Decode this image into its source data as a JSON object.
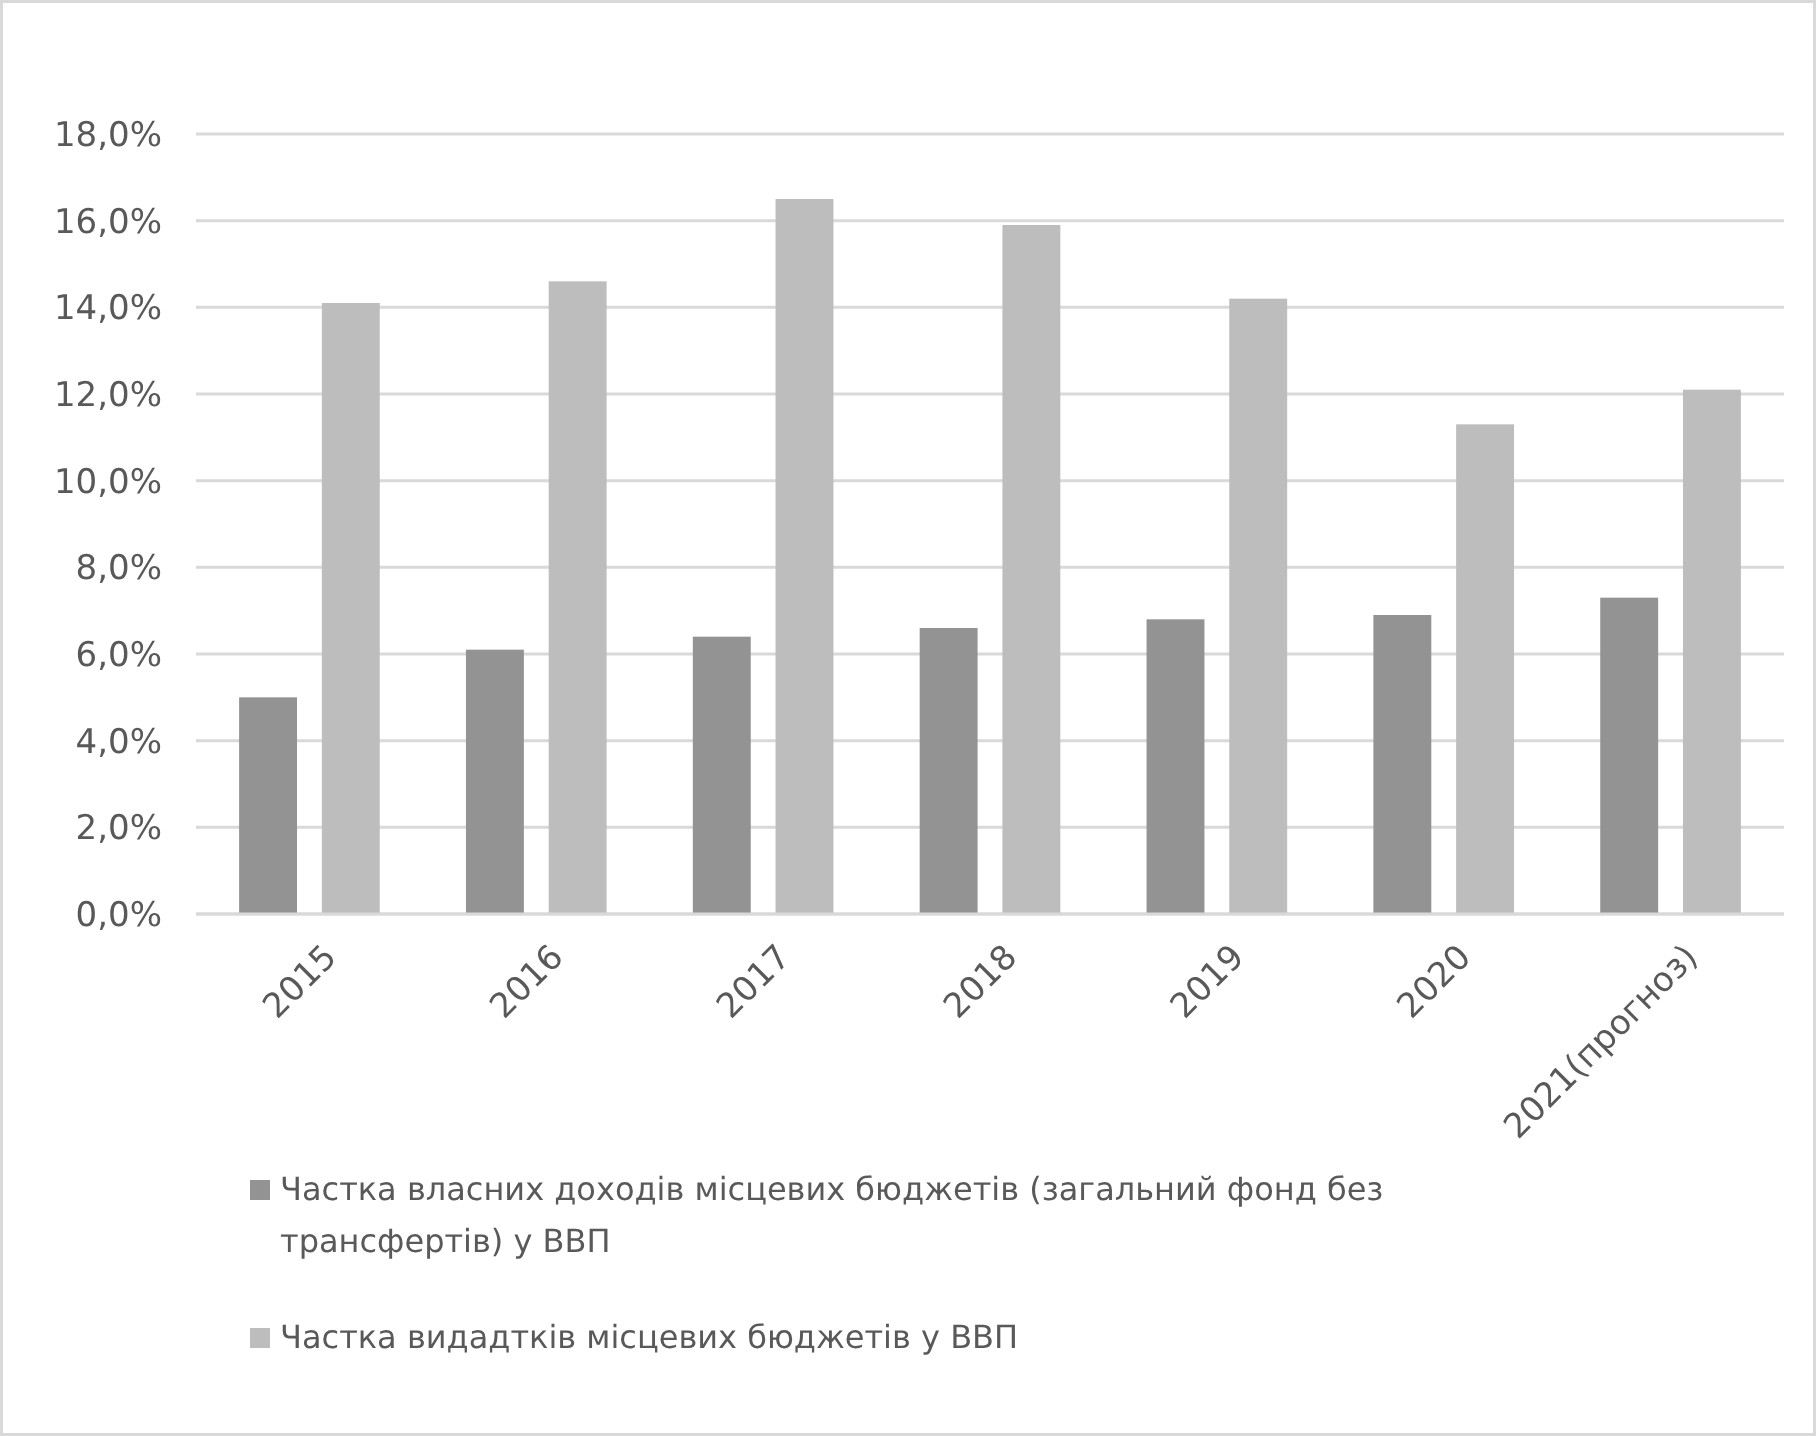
{
  "chart_data": {
    "type": "bar",
    "categories": [
      "2015",
      "2016",
      "2017",
      "2018",
      "2019",
      "2020",
      "2021(прогноз)"
    ],
    "series": [
      {
        "name": "Частка власних доходів місцевих бюджетів (загальний фонд без трансфертів) у ВВП",
        "color": "#939393",
        "values": [
          5.0,
          6.1,
          6.4,
          6.6,
          6.8,
          6.9,
          7.3
        ]
      },
      {
        "name": "Частка видадтків місцевих бюджетів у ВВП",
        "color": "#bdbdbd",
        "values": [
          14.1,
          14.6,
          16.5,
          15.9,
          14.2,
          11.3,
          12.1
        ]
      }
    ],
    "ylim": [
      0,
      18
    ],
    "yticks": [
      {
        "value": 0,
        "label": "0,0%"
      },
      {
        "value": 2,
        "label": "2,0%"
      },
      {
        "value": 4,
        "label": "4,0%"
      },
      {
        "value": 6,
        "label": "6,0%"
      },
      {
        "value": 8,
        "label": "8,0%"
      },
      {
        "value": 10,
        "label": "10,0%"
      },
      {
        "value": 12,
        "label": "12,0%"
      },
      {
        "value": 14,
        "label": "14,0%"
      },
      {
        "value": 16,
        "label": "16,0%"
      },
      {
        "value": 18,
        "label": "18,0%"
      }
    ],
    "grid": "y",
    "legend": "bottom"
  }
}
